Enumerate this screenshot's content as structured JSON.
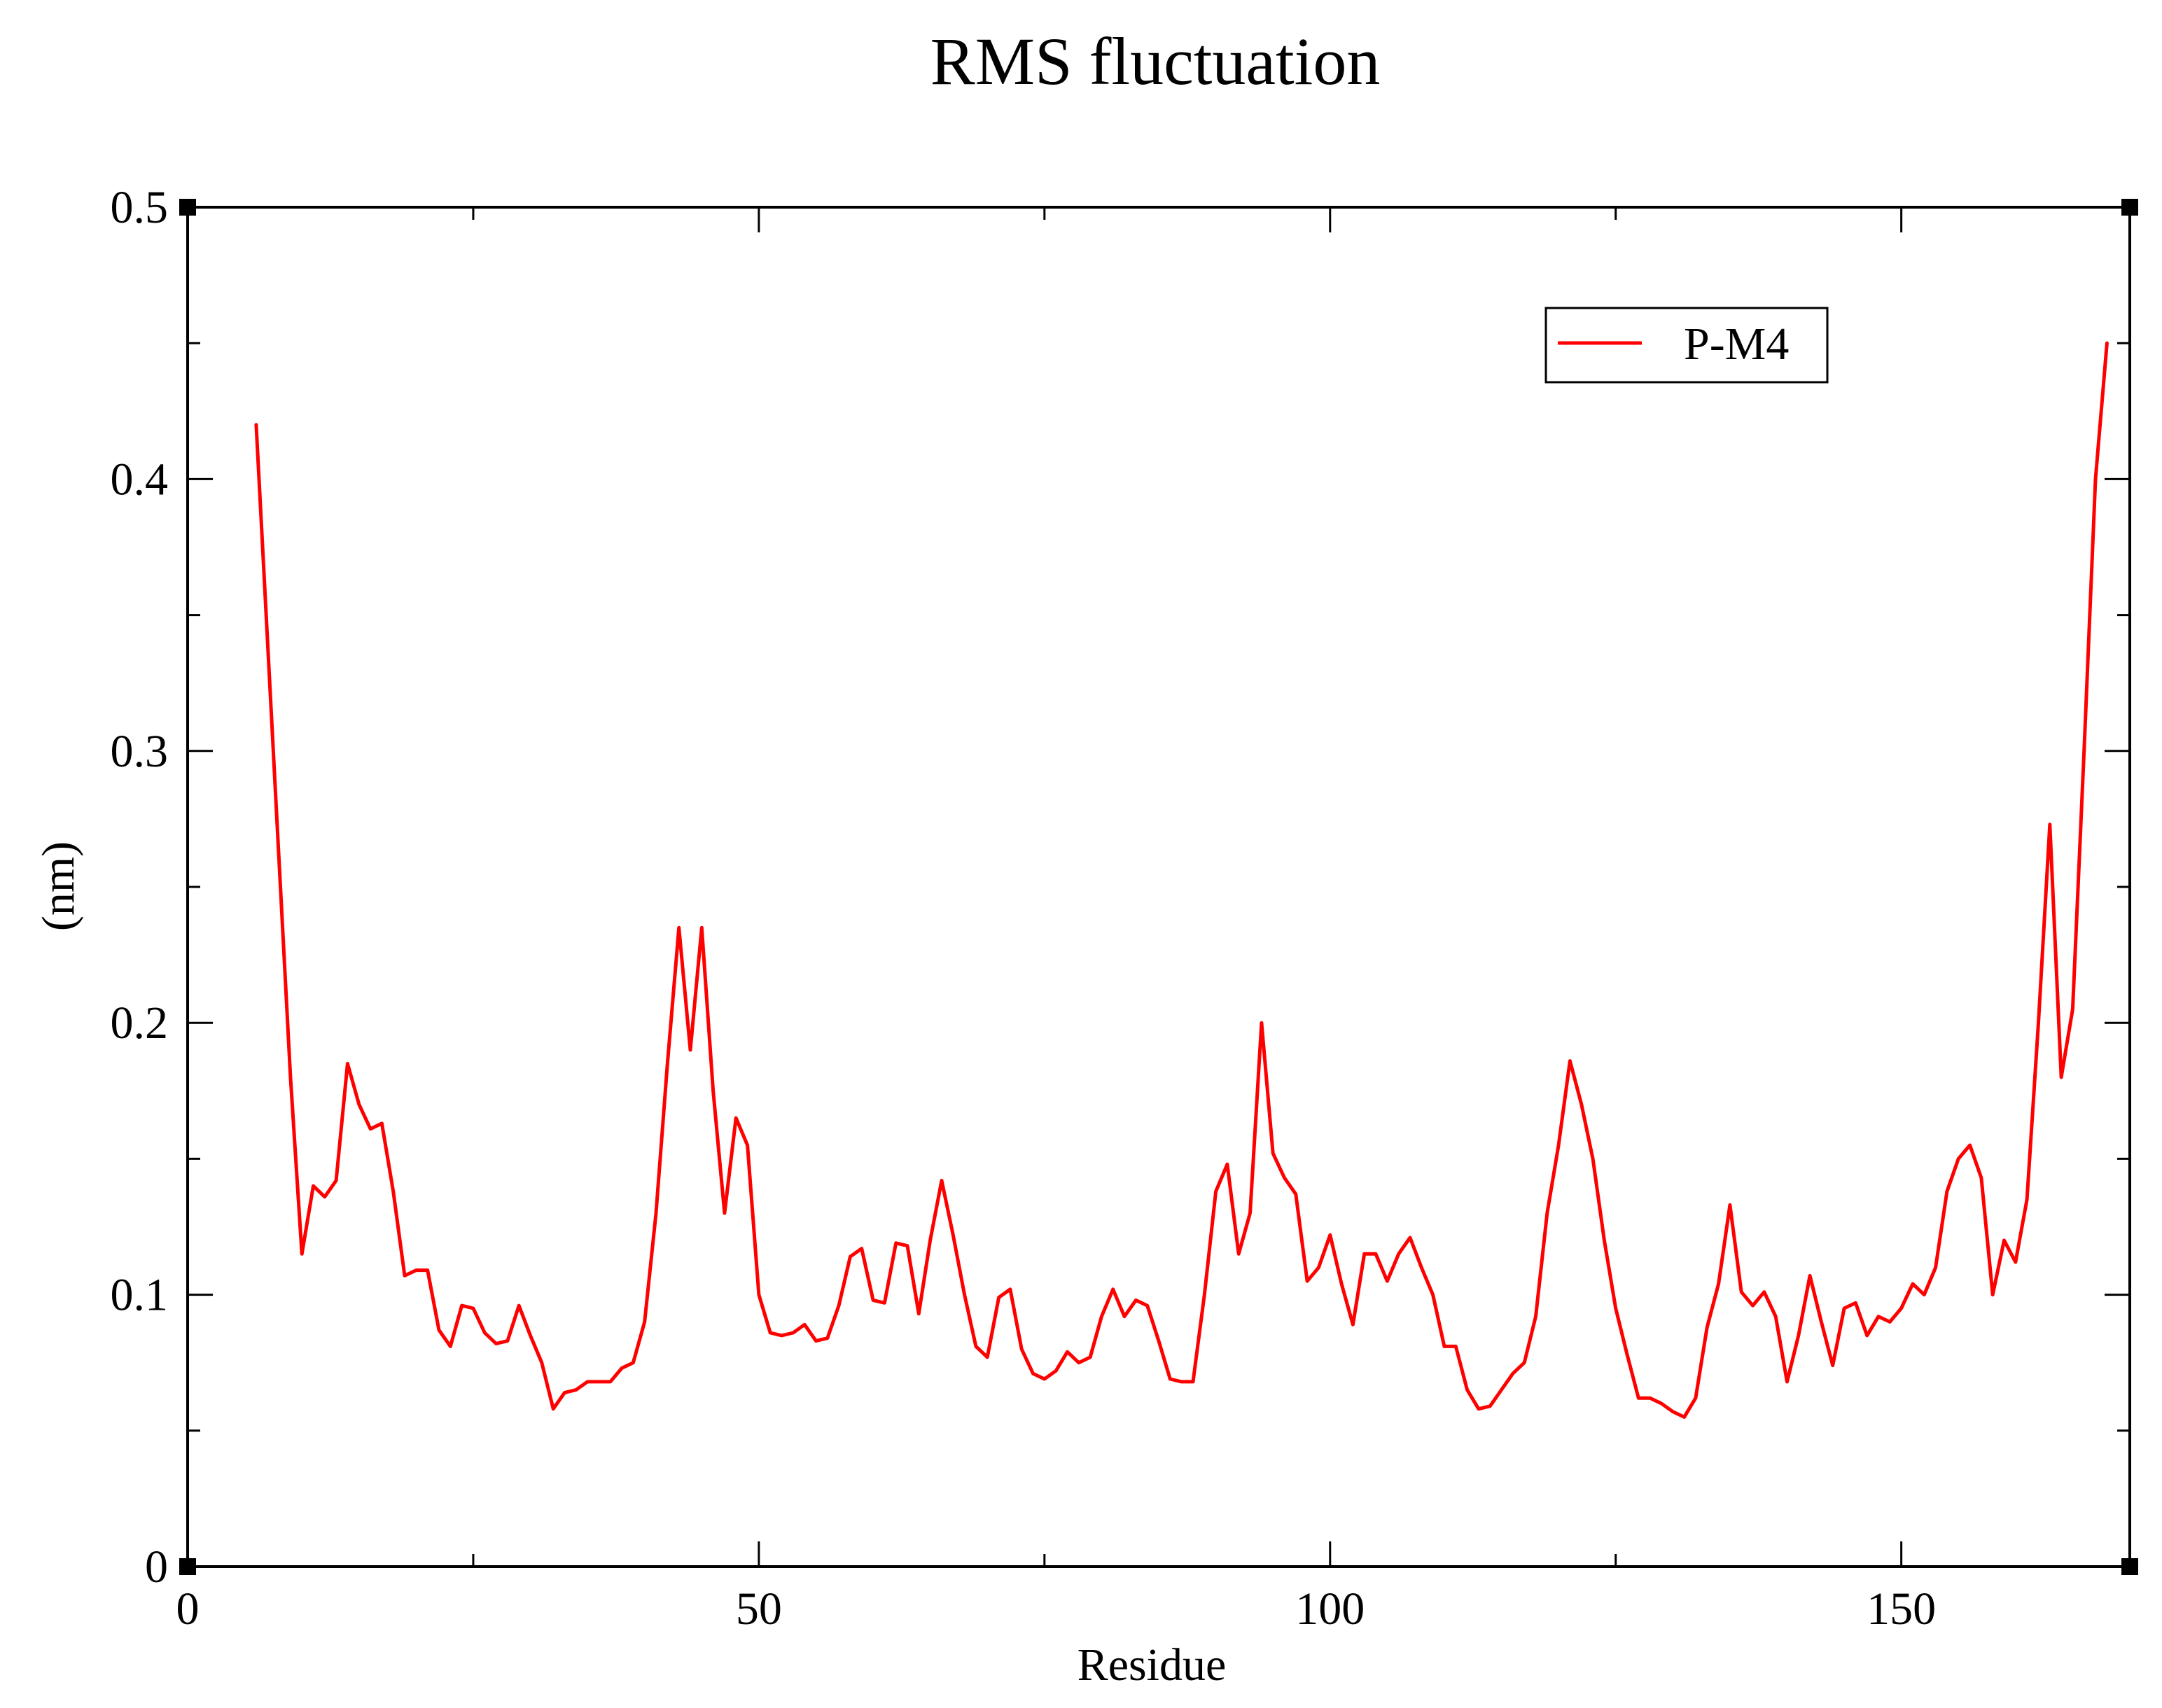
{
  "chart_data": {
    "type": "line",
    "title": "RMS fluctuation",
    "xlabel": "Residue",
    "ylabel": "(nm)",
    "xlim": [
      0,
      170
    ],
    "ylim": [
      0,
      0.5
    ],
    "x_major_ticks": [
      0,
      50,
      100,
      150
    ],
    "x_tick_labels": [
      "0",
      "50",
      "100",
      "150"
    ],
    "x_minor_ticks": [
      25,
      75,
      125
    ],
    "y_major_ticks": [
      0,
      0.1,
      0.2,
      0.3,
      0.4,
      0.5
    ],
    "y_tick_labels": [
      "0",
      "0.1",
      "0.2",
      "0.3",
      "0.4",
      "0.5"
    ],
    "y_minor_ticks": [
      0.05,
      0.15,
      0.25,
      0.35,
      0.45
    ],
    "grid": false,
    "legend": {
      "position": "top-right"
    },
    "series": [
      {
        "name": "P-M4",
        "color": "#ff0000",
        "points": [
          [
            6,
            0.42
          ],
          [
            7,
            0.34
          ],
          [
            8,
            0.26
          ],
          [
            9,
            0.18
          ],
          [
            10,
            0.115
          ],
          [
            11,
            0.14
          ],
          [
            12,
            0.136
          ],
          [
            13,
            0.142
          ],
          [
            14,
            0.185
          ],
          [
            15,
            0.17
          ],
          [
            16,
            0.161
          ],
          [
            17,
            0.163
          ],
          [
            18,
            0.138
          ],
          [
            19,
            0.107
          ],
          [
            20,
            0.109
          ],
          [
            21,
            0.109
          ],
          [
            22,
            0.087
          ],
          [
            23,
            0.081
          ],
          [
            24,
            0.096
          ],
          [
            25,
            0.095
          ],
          [
            26,
            0.086
          ],
          [
            27,
            0.082
          ],
          [
            28,
            0.083
          ],
          [
            29,
            0.096
          ],
          [
            30,
            0.085
          ],
          [
            31,
            0.075
          ],
          [
            32,
            0.058
          ],
          [
            33,
            0.064
          ],
          [
            34,
            0.065
          ],
          [
            35,
            0.068
          ],
          [
            36,
            0.068
          ],
          [
            37,
            0.068
          ],
          [
            38,
            0.073
          ],
          [
            39,
            0.075
          ],
          [
            40,
            0.09
          ],
          [
            41,
            0.13
          ],
          [
            42,
            0.185
          ],
          [
            43,
            0.235
          ],
          [
            44,
            0.19
          ],
          [
            45,
            0.235
          ],
          [
            46,
            0.175
          ],
          [
            47,
            0.13
          ],
          [
            48,
            0.165
          ],
          [
            49,
            0.155
          ],
          [
            50,
            0.1
          ],
          [
            51,
            0.086
          ],
          [
            52,
            0.085
          ],
          [
            53,
            0.086
          ],
          [
            54,
            0.089
          ],
          [
            55,
            0.083
          ],
          [
            56,
            0.084
          ],
          [
            57,
            0.096
          ],
          [
            58,
            0.114
          ],
          [
            59,
            0.117
          ],
          [
            60,
            0.098
          ],
          [
            61,
            0.097
          ],
          [
            62,
            0.119
          ],
          [
            63,
            0.118
          ],
          [
            64,
            0.093
          ],
          [
            65,
            0.12
          ],
          [
            66,
            0.142
          ],
          [
            67,
            0.122
          ],
          [
            68,
            0.1
          ],
          [
            69,
            0.081
          ],
          [
            70,
            0.077
          ],
          [
            71,
            0.099
          ],
          [
            72,
            0.102
          ],
          [
            73,
            0.08
          ],
          [
            74,
            0.071
          ],
          [
            75,
            0.069
          ],
          [
            76,
            0.072
          ],
          [
            77,
            0.079
          ],
          [
            78,
            0.075
          ],
          [
            79,
            0.077
          ],
          [
            80,
            0.092
          ],
          [
            81,
            0.102
          ],
          [
            82,
            0.092
          ],
          [
            83,
            0.098
          ],
          [
            84,
            0.096
          ],
          [
            85,
            0.083
          ],
          [
            86,
            0.069
          ],
          [
            87,
            0.068
          ],
          [
            88,
            0.068
          ],
          [
            89,
            0.1
          ],
          [
            90,
            0.138
          ],
          [
            91,
            0.148
          ],
          [
            92,
            0.115
          ],
          [
            93,
            0.13
          ],
          [
            94,
            0.2
          ],
          [
            95,
            0.152
          ],
          [
            96,
            0.143
          ],
          [
            97,
            0.137
          ],
          [
            98,
            0.105
          ],
          [
            99,
            0.11
          ],
          [
            100,
            0.122
          ],
          [
            101,
            0.104
          ],
          [
            102,
            0.089
          ],
          [
            103,
            0.115
          ],
          [
            104,
            0.115
          ],
          [
            105,
            0.105
          ],
          [
            106,
            0.115
          ],
          [
            107,
            0.121
          ],
          [
            108,
            0.11
          ],
          [
            109,
            0.1
          ],
          [
            110,
            0.081
          ],
          [
            111,
            0.081
          ],
          [
            112,
            0.065
          ],
          [
            113,
            0.058
          ],
          [
            114,
            0.059
          ],
          [
            115,
            0.065
          ],
          [
            116,
            0.071
          ],
          [
            117,
            0.075
          ],
          [
            118,
            0.092
          ],
          [
            119,
            0.13
          ],
          [
            120,
            0.155
          ],
          [
            121,
            0.186
          ],
          [
            122,
            0.17
          ],
          [
            123,
            0.15
          ],
          [
            124,
            0.12
          ],
          [
            125,
            0.095
          ],
          [
            126,
            0.078
          ],
          [
            127,
            0.062
          ],
          [
            128,
            0.062
          ],
          [
            129,
            0.06
          ],
          [
            130,
            0.057
          ],
          [
            131,
            0.055
          ],
          [
            132,
            0.062
          ],
          [
            133,
            0.088
          ],
          [
            134,
            0.104
          ],
          [
            135,
            0.133
          ],
          [
            136,
            0.101
          ],
          [
            137,
            0.096
          ],
          [
            138,
            0.101
          ],
          [
            139,
            0.092
          ],
          [
            140,
            0.068
          ],
          [
            141,
            0.085
          ],
          [
            142,
            0.107
          ],
          [
            143,
            0.09
          ],
          [
            144,
            0.074
          ],
          [
            145,
            0.095
          ],
          [
            146,
            0.097
          ],
          [
            147,
            0.085
          ],
          [
            148,
            0.092
          ],
          [
            149,
            0.09
          ],
          [
            150,
            0.095
          ],
          [
            151,
            0.104
          ],
          [
            152,
            0.1
          ],
          [
            153,
            0.11
          ],
          [
            154,
            0.138
          ],
          [
            155,
            0.15
          ],
          [
            156,
            0.155
          ],
          [
            157,
            0.143
          ],
          [
            158,
            0.1
          ],
          [
            159,
            0.12
          ],
          [
            160,
            0.112
          ],
          [
            161,
            0.135
          ],
          [
            162,
            0.2
          ],
          [
            163,
            0.273
          ],
          [
            164,
            0.18
          ],
          [
            165,
            0.205
          ],
          [
            166,
            0.3
          ],
          [
            167,
            0.4
          ],
          [
            168,
            0.45
          ]
        ]
      }
    ]
  }
}
